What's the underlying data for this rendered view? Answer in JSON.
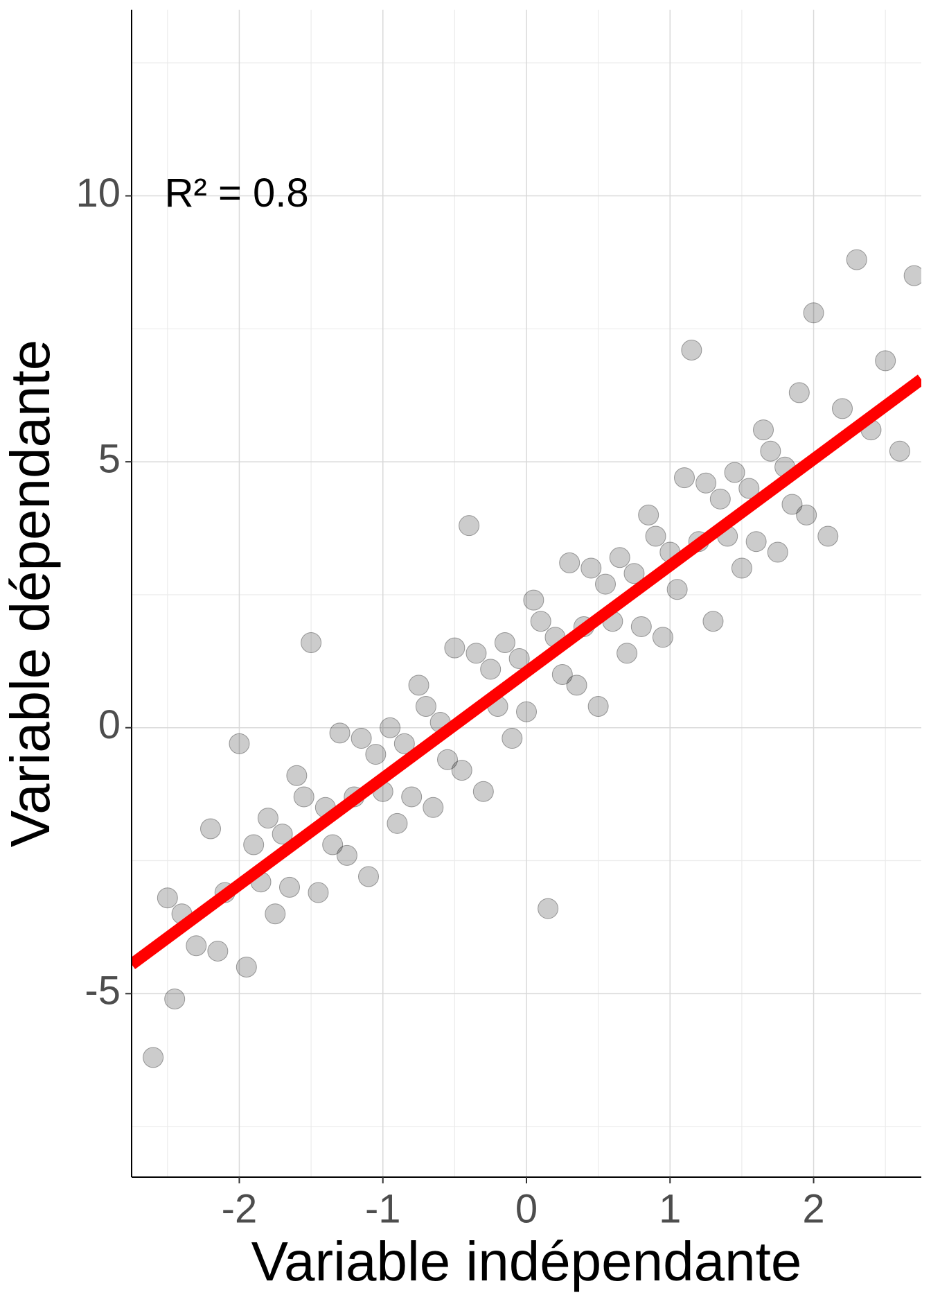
{
  "chart_data": {
    "type": "scatter",
    "x_label": "Variable indépendante",
    "y_label": "Variable dépendante",
    "annotation": {
      "text": "R² = 0.8",
      "x": -2.52,
      "y": 10
    },
    "xlim": [
      -2.75,
      2.75
    ],
    "ylim": [
      -8.45,
      13.5
    ],
    "xticks": [
      -2,
      -1,
      0,
      1,
      2
    ],
    "yticks": [
      -5,
      0,
      5,
      10
    ],
    "minor_xticks": [
      -2.5,
      -1.5,
      -0.5,
      0.5,
      1.5,
      2.5
    ],
    "minor_yticks": [
      -7.5,
      -2.5,
      2.5,
      7.5,
      12.5
    ],
    "grid": true,
    "color": "#000000",
    "fit": {
      "slope": 2,
      "intercept": 1.05,
      "color": "#ff0000"
    },
    "x": [
      -2.6,
      -2.5,
      -2.45,
      -2.4,
      -2.3,
      -2.2,
      -2.15,
      -2.1,
      -2.0,
      -1.95,
      -1.9,
      -1.85,
      -1.8,
      -1.75,
      -1.7,
      -1.65,
      -1.6,
      -1.55,
      -1.5,
      -1.45,
      -1.4,
      -1.35,
      -1.3,
      -1.25,
      -1.2,
      -1.15,
      -1.1,
      -1.05,
      -1.0,
      -0.95,
      -0.9,
      -0.85,
      -0.8,
      -0.75,
      -0.7,
      -0.65,
      -0.6,
      -0.55,
      -0.5,
      -0.45,
      -0.4,
      -0.35,
      -0.3,
      -0.25,
      -0.2,
      -0.15,
      -0.1,
      -0.05,
      0,
      0.05,
      0.1,
      0.15,
      0.2,
      0.25,
      0.3,
      0.35,
      0.4,
      0.45,
      0.5,
      0.55,
      0.6,
      0.65,
      0.7,
      0.75,
      0.8,
      0.85,
      0.9,
      0.95,
      1.0,
      1.05,
      1.1,
      1.15,
      1.2,
      1.25,
      1.3,
      1.35,
      1.4,
      1.45,
      1.5,
      1.55,
      1.6,
      1.65,
      1.7,
      1.75,
      1.8,
      1.85,
      1.9,
      1.95,
      2.0,
      2.1,
      2.2,
      2.3,
      2.4,
      2.5,
      2.6,
      2.7
    ],
    "values": [
      -6.2,
      -3.2,
      -5.1,
      -3.5,
      -4.1,
      -1.9,
      -4.2,
      -3.1,
      -0.3,
      -4.5,
      -2.2,
      -2.9,
      -1.7,
      -3.5,
      -2.0,
      -3.0,
      -0.9,
      -1.3,
      1.6,
      -3.1,
      -1.5,
      -2.2,
      -0.1,
      -2.4,
      -1.3,
      -0.2,
      -2.8,
      -0.5,
      -1.2,
      0,
      -1.8,
      -0.3,
      -1.3,
      0.8,
      0.4,
      -1.5,
      0.1,
      -0.6,
      1.5,
      -0.8,
      3.8,
      1.4,
      -1.2,
      1.1,
      0.4,
      1.6,
      -0.2,
      1.3,
      0.3,
      2.4,
      2.0,
      -3.4,
      1.7,
      1.0,
      3.1,
      0.8,
      1.9,
      3.0,
      0.4,
      2.7,
      2.0,
      3.2,
      1.4,
      2.9,
      1.9,
      4.0,
      3.6,
      1.7,
      3.3,
      2.6,
      4.7,
      7.1,
      3.5,
      4.6,
      2.0,
      4.3,
      3.6,
      4.8,
      3.0,
      4.5,
      3.5,
      5.6,
      5.2,
      3.3,
      4.9,
      4.2,
      6.3,
      4.0,
      7.8,
      3.6,
      6.0,
      8.8,
      5.6,
      6.9,
      5.2,
      8.5
    ]
  }
}
